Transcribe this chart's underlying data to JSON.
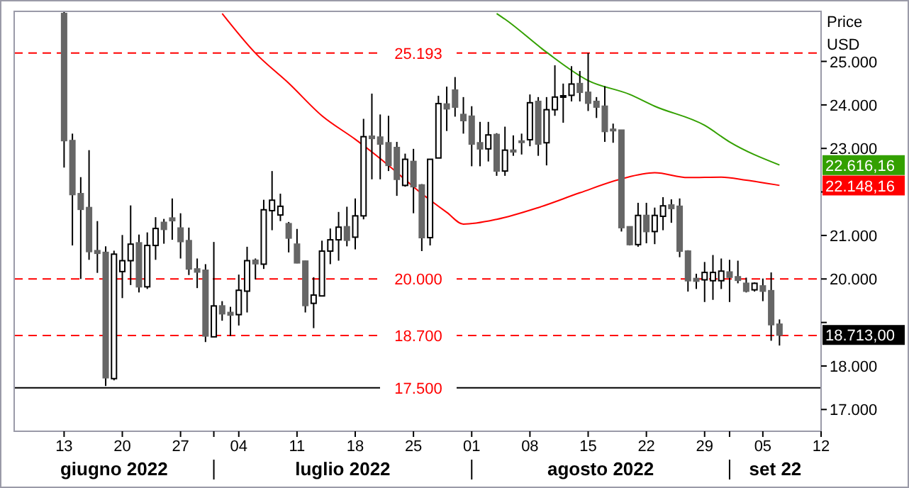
{
  "chart_data": {
    "type": "candlestick",
    "ylabel": "Price USD",
    "xlim": [
      "2022-06-07",
      "2022-09-12"
    ],
    "xticks": [
      {
        "value": "2022-06-13",
        "label": "13"
      },
      {
        "value": "2022-06-20",
        "label": "20"
      },
      {
        "value": "2022-06-27",
        "label": "27"
      },
      {
        "value": "2022-07-01",
        "label": null
      },
      {
        "value": "2022-07-04",
        "label": "04"
      },
      {
        "value": "2022-07-11",
        "label": "11"
      },
      {
        "value": "2022-07-18",
        "label": "18"
      },
      {
        "value": "2022-07-25",
        "label": "25"
      },
      {
        "value": "2022-08-01",
        "label": "01"
      },
      {
        "value": "2022-08-08",
        "label": "08"
      },
      {
        "value": "2022-08-15",
        "label": "15"
      },
      {
        "value": "2022-08-22",
        "label": "22"
      },
      {
        "value": "2022-08-29",
        "label": "29"
      },
      {
        "value": "2022-09-01",
        "label": null
      },
      {
        "value": "2022-09-05",
        "label": "05"
      },
      {
        "value": "2022-09-12",
        "label": "12"
      }
    ],
    "ylim": [
      16500,
      26150
    ],
    "yticks": [
      {
        "value": 17000,
        "label": "17.000"
      },
      {
        "value": 18000,
        "label": "18.000"
      },
      {
        "value": 19000,
        "label": null
      },
      {
        "value": 20000,
        "label": "20.000"
      },
      {
        "value": 21000,
        "label": "21.000"
      },
      {
        "value": 22000,
        "label": null
      },
      {
        "value": 23000,
        "label": "23.000"
      },
      {
        "value": 24000,
        "label": "24.000"
      },
      {
        "value": 25000,
        "label": "25.000"
      }
    ],
    "x": [
      "2022-06-13",
      "2022-06-14",
      "2022-06-15",
      "2022-06-16",
      "2022-06-17",
      "2022-06-18",
      "2022-06-19",
      "2022-06-20",
      "2022-06-21",
      "2022-06-22",
      "2022-06-23",
      "2022-06-24",
      "2022-06-25",
      "2022-06-26",
      "2022-06-27",
      "2022-06-28",
      "2022-06-29",
      "2022-06-30",
      "2022-07-01",
      "2022-07-02",
      "2022-07-03",
      "2022-07-04",
      "2022-07-05",
      "2022-07-06",
      "2022-07-07",
      "2022-07-08",
      "2022-07-09",
      "2022-07-10",
      "2022-07-11",
      "2022-07-12",
      "2022-07-13",
      "2022-07-14",
      "2022-07-15",
      "2022-07-16",
      "2022-07-17",
      "2022-07-18",
      "2022-07-19",
      "2022-07-20",
      "2022-07-21",
      "2022-07-22",
      "2022-07-23",
      "2022-07-24",
      "2022-07-25",
      "2022-07-26",
      "2022-07-27",
      "2022-07-28",
      "2022-07-29",
      "2022-07-30",
      "2022-07-31",
      "2022-08-01",
      "2022-08-02",
      "2022-08-03",
      "2022-08-04",
      "2022-08-05",
      "2022-08-06",
      "2022-08-07",
      "2022-08-08",
      "2022-08-09",
      "2022-08-10",
      "2022-08-11",
      "2022-08-12",
      "2022-08-13",
      "2022-08-14",
      "2022-08-15",
      "2022-08-16",
      "2022-08-17",
      "2022-08-18",
      "2022-08-19",
      "2022-08-20",
      "2022-08-21",
      "2022-08-22",
      "2022-08-23",
      "2022-08-24",
      "2022-08-25",
      "2022-08-26",
      "2022-08-27",
      "2022-08-28",
      "2022-08-29",
      "2022-08-30",
      "2022-08-31",
      "2022-09-01",
      "2022-09-02",
      "2022-09-03",
      "2022-09-04",
      "2022-09-05",
      "2022-09-06",
      "2022-09-07"
    ],
    "ohlc": [
      [
        26100,
        26150,
        22560,
        23180
      ],
      [
        23180,
        23340,
        20770,
        21940
      ],
      [
        21960,
        22340,
        20000,
        21600
      ],
      [
        21640,
        22960,
        20440,
        20630
      ],
      [
        20650,
        21330,
        20140,
        20590
      ],
      [
        20610,
        20750,
        17540,
        17730
      ],
      [
        17710,
        20650,
        17670,
        20570
      ],
      [
        20170,
        21010,
        19560,
        20420
      ],
      [
        20420,
        21690,
        19860,
        20800
      ],
      [
        20830,
        21020,
        19690,
        19820
      ],
      [
        19820,
        21070,
        19770,
        20770
      ],
      [
        20770,
        21420,
        20440,
        21160
      ],
      [
        21300,
        21380,
        20810,
        21140
      ],
      [
        21400,
        21850,
        20900,
        21340
      ],
      [
        21170,
        21510,
        20470,
        20860
      ],
      [
        20880,
        21180,
        20090,
        20230
      ],
      [
        20230,
        20470,
        19790,
        20160
      ],
      [
        20200,
        20340,
        18550,
        18690
      ],
      [
        18670,
        20850,
        18670,
        19380
      ],
      [
        19380,
        19490,
        19040,
        19200
      ],
      [
        19230,
        19360,
        18690,
        19170
      ],
      [
        19180,
        20100,
        18930,
        19740
      ],
      [
        19720,
        20740,
        19230,
        20420
      ],
      [
        20430,
        20470,
        19990,
        20350
      ],
      [
        20340,
        21820,
        20230,
        21590
      ],
      [
        21570,
        22480,
        21120,
        21810
      ],
      [
        21470,
        21960,
        21330,
        21670
      ],
      [
        21270,
        21310,
        20610,
        20940
      ],
      [
        20800,
        21150,
        20360,
        20370
      ],
      [
        20410,
        20420,
        19230,
        19390
      ],
      [
        19440,
        20040,
        18870,
        19630
      ],
      [
        19610,
        20880,
        19610,
        20640
      ],
      [
        20640,
        21160,
        20340,
        20900
      ],
      [
        20900,
        21540,
        20420,
        21190
      ],
      [
        21200,
        21660,
        20750,
        20890
      ],
      [
        20960,
        21850,
        20680,
        21450
      ],
      [
        21450,
        23680,
        21370,
        23270
      ],
      [
        23280,
        24260,
        22290,
        23230
      ],
      [
        23260,
        23780,
        22290,
        23100
      ],
      [
        23130,
        23750,
        22480,
        22610
      ],
      [
        23020,
        23150,
        21910,
        22290
      ],
      [
        22150,
        22880,
        22120,
        22750
      ],
      [
        22700,
        22990,
        21510,
        22120
      ],
      [
        22160,
        22180,
        20640,
        20950
      ],
      [
        20950,
        22750,
        20770,
        22750
      ],
      [
        22780,
        24210,
        22780,
        24030
      ],
      [
        24020,
        24420,
        23400,
        23910
      ],
      [
        24340,
        24640,
        23730,
        23950
      ],
      [
        23780,
        24180,
        23340,
        23640
      ],
      [
        23740,
        23970,
        22590,
        23100
      ],
      [
        23130,
        23610,
        22590,
        22990
      ],
      [
        22990,
        23610,
        22700,
        23310
      ],
      [
        23320,
        23350,
        22370,
        22480
      ],
      [
        22480,
        23500,
        22370,
        22960
      ],
      [
        22960,
        23300,
        22830,
        22920
      ],
      [
        23170,
        23340,
        22860,
        23150
      ],
      [
        23200,
        24240,
        23050,
        24050
      ],
      [
        24080,
        24180,
        22830,
        23100
      ],
      [
        23130,
        24180,
        22610,
        23890
      ],
      [
        23890,
        24910,
        23750,
        24180
      ],
      [
        24200,
        24490,
        23590,
        24210
      ],
      [
        24220,
        24890,
        24080,
        24480
      ],
      [
        24490,
        24780,
        24080,
        24290
      ],
      [
        24290,
        25190,
        23860,
        24040
      ],
      [
        24080,
        24180,
        23700,
        23950
      ],
      [
        23970,
        24430,
        23150,
        23390
      ],
      [
        23440,
        23570,
        23130,
        23420
      ],
      [
        23420,
        23420,
        21090,
        21180
      ],
      [
        21200,
        21200,
        20770,
        20790
      ],
      [
        20790,
        21750,
        20740,
        21460
      ],
      [
        21460,
        21750,
        20820,
        21090
      ],
      [
        21090,
        21640,
        20800,
        21460
      ],
      [
        21440,
        21880,
        21120,
        21680
      ],
      [
        21700,
        21830,
        21290,
        21620
      ],
      [
        21670,
        21850,
        20500,
        20640
      ],
      [
        20640,
        20660,
        19710,
        19960
      ],
      [
        20010,
        20120,
        19770,
        19950
      ],
      [
        19980,
        20390,
        19470,
        20150
      ],
      [
        19960,
        20550,
        19520,
        20150
      ],
      [
        19960,
        20470,
        19770,
        20180
      ],
      [
        20160,
        20440,
        19470,
        20040
      ],
      [
        20050,
        20420,
        19900,
        19970
      ],
      [
        19900,
        20030,
        19690,
        19720
      ],
      [
        19750,
        19920,
        19710,
        19900
      ],
      [
        19840,
        20010,
        19490,
        19720
      ],
      [
        19730,
        20150,
        18580,
        18950
      ],
      [
        18960,
        19070,
        18470,
        18710
      ]
    ],
    "series": [
      {
        "type": "line",
        "color": "#ff0000",
        "x": [
          "2022-07-02",
          "2022-07-06",
          "2022-07-10",
          "2022-07-14",
          "2022-07-18",
          "2022-07-22",
          "2022-07-26",
          "2022-07-29",
          "2022-07-31",
          "2022-08-04",
          "2022-08-09",
          "2022-08-14",
          "2022-08-19",
          "2022-08-23",
          "2022-08-27",
          "2022-08-31",
          "2022-09-03",
          "2022-09-07"
        ],
        "values": [
          26100,
          25190,
          24500,
          23750,
          23210,
          22610,
          21960,
          21530,
          21260,
          21370,
          21640,
          21980,
          22300,
          22440,
          22330,
          22340,
          22270,
          22150
        ]
      },
      {
        "type": "line",
        "color": "#33a000",
        "x": [
          "2022-08-04",
          "2022-08-05",
          "2022-08-10",
          "2022-08-15",
          "2022-08-20",
          "2022-08-23",
          "2022-08-29",
          "2022-09-01",
          "2022-09-07"
        ],
        "values": [
          26100,
          25970,
          25210,
          24560,
          24240,
          23970,
          23530,
          23150,
          22620
        ]
      }
    ],
    "ref_lines": [
      {
        "axis": "y",
        "value": 25193,
        "label": "25.193",
        "color": "#ff0000",
        "line_style": "dashed"
      },
      {
        "axis": "y",
        "value": 20000,
        "label": "20.000",
        "color": "#ff0000",
        "line_style": "dashed"
      },
      {
        "axis": "y",
        "value": 18700,
        "label": "18.700",
        "color": "#ff0000",
        "line_style": "dashed"
      },
      {
        "axis": "y",
        "value": 17500,
        "label": "17.500",
        "color": "#000000",
        "line_style": "solid"
      }
    ],
    "annotations": [
      "giugno 2022",
      "luglio 2022",
      "agosto 2022",
      "set 22",
      {
        "text": "22.616,16",
        "x": "2022-09-07",
        "y": 22616.16
      },
      {
        "text": "22.148,16",
        "x": "2022-09-07",
        "y": 22148.16
      },
      {
        "text": "18.713,00",
        "x": "2022-09-07",
        "y": 18713
      }
    ]
  }
}
